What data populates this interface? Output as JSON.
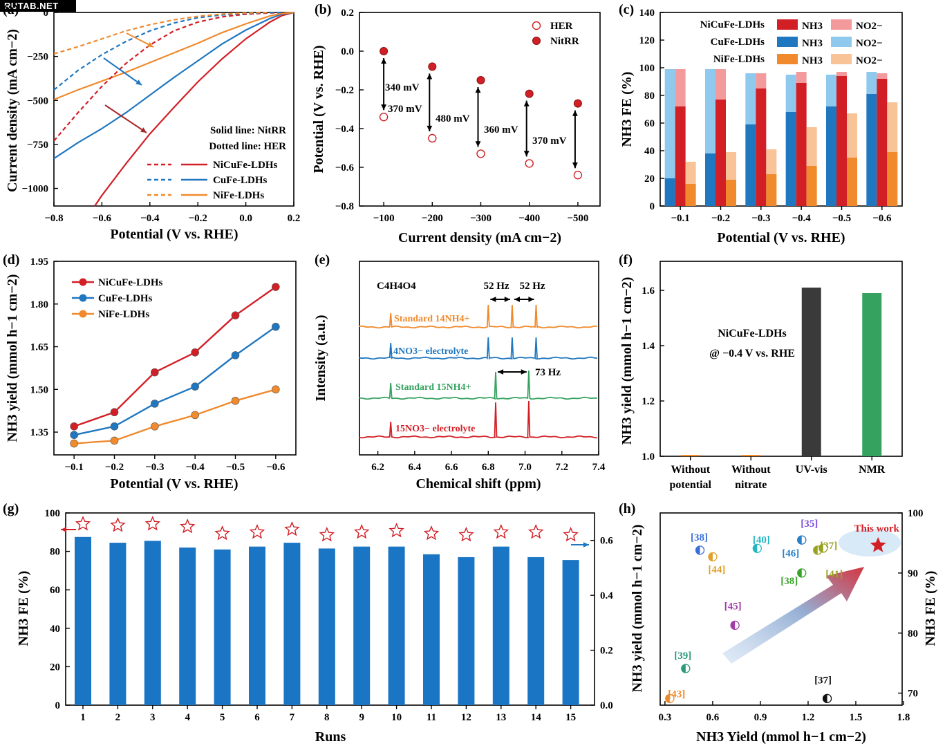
{
  "watermark": "RUTAB.NET",
  "colors": {
    "red": "#d21f26",
    "blue": "#1f77c0",
    "orange": "#f08a2c",
    "light_red": "#f39a9d",
    "light_blue": "#8fc9ee",
    "light_orange": "#f9c398",
    "green": "#35a35f",
    "dark": "#3a3a3a",
    "bar_blue": "#1a75c4",
    "star": "#d21f26"
  },
  "chart_data": [
    {
      "panel": "(a)",
      "type": "line",
      "xlabel": "Potential (V vs. RHE)",
      "ylabel": "Current density (mA cm−2)",
      "xlim": [
        -0.8,
        0.2
      ],
      "ylim": [
        -1100,
        0
      ],
      "xticks": [
        "−0.8",
        "−0.6",
        "−0.4",
        "−0.2",
        "0.0",
        "0.2"
      ],
      "yticks": [
        "0",
        "−250",
        "−500",
        "−750",
        "−1000"
      ],
      "notes": [
        "Solid line: NitRR",
        "Dotted line: HER"
      ],
      "legend": [
        "NiCuFe-LDHs",
        "CuFe-LDHs",
        "NiFe-LDHs"
      ],
      "series": [
        {
          "name": "NiCuFe-LDHs",
          "style": "solid",
          "color": "red",
          "x": [
            -0.63,
            -0.6,
            -0.5,
            -0.4,
            -0.3,
            -0.2,
            -0.1,
            0.0,
            0.1,
            0.15,
            0.2
          ],
          "y": [
            -1100,
            -1040,
            -860,
            -690,
            -540,
            -395,
            -265,
            -150,
            -55,
            -18,
            0
          ]
        },
        {
          "name": "CuFe-LDHs",
          "style": "solid",
          "color": "blue",
          "x": [
            -0.8,
            -0.7,
            -0.6,
            -0.5,
            -0.4,
            -0.3,
            -0.2,
            -0.1,
            0.0,
            0.1,
            0.15,
            0.2
          ],
          "y": [
            -830,
            -740,
            -660,
            -570,
            -470,
            -370,
            -275,
            -180,
            -100,
            -35,
            -10,
            0
          ]
        },
        {
          "name": "NiFe-LDHs",
          "style": "solid",
          "color": "orange",
          "x": [
            -0.8,
            -0.7,
            -0.6,
            -0.5,
            -0.4,
            -0.3,
            -0.2,
            -0.1,
            0.0,
            0.1,
            0.15,
            0.2
          ],
          "y": [
            -495,
            -440,
            -390,
            -340,
            -285,
            -230,
            -175,
            -115,
            -65,
            -20,
            -6,
            0
          ]
        },
        {
          "name": "NiCuFe-LDHs",
          "style": "dashed",
          "color": "red",
          "x": [
            -0.8,
            -0.7,
            -0.6,
            -0.5,
            -0.4,
            -0.3,
            -0.2,
            -0.1,
            0.0,
            0.1,
            0.15
          ],
          "y": [
            -730,
            -570,
            -420,
            -290,
            -185,
            -105,
            -55,
            -25,
            -10,
            -3,
            0
          ]
        },
        {
          "name": "CuFe-LDHs",
          "style": "dashed",
          "color": "blue",
          "x": [
            -0.8,
            -0.7,
            -0.6,
            -0.5,
            -0.4,
            -0.3,
            -0.2,
            -0.1,
            0.0,
            0.1,
            0.15
          ],
          "y": [
            -440,
            -330,
            -240,
            -165,
            -105,
            -60,
            -30,
            -14,
            -5,
            -1,
            0
          ]
        },
        {
          "name": "NiFe-LDHs",
          "style": "dashed",
          "color": "orange",
          "x": [
            -0.8,
            -0.7,
            -0.6,
            -0.5,
            -0.4,
            -0.3,
            -0.2,
            -0.1,
            0.0,
            0.1
          ],
          "y": [
            -235,
            -195,
            -150,
            -105,
            -70,
            -42,
            -22,
            -9,
            -3,
            0
          ]
        }
      ]
    },
    {
      "panel": "(b)",
      "type": "scatter",
      "xlabel": "Current density (mA cm−2)",
      "ylabel": "Potential (V vs. RHE)",
      "xlim": [
        -50,
        -550
      ],
      "ylim": [
        -0.8,
        0.2
      ],
      "xticks": [
        "−100",
        "−200",
        "−300",
        "−400",
        "−500"
      ],
      "yticks": [
        "0.2",
        "0.0",
        "−0.2",
        "−0.4",
        "−0.6",
        "−0.8"
      ],
      "legend": [
        "HER",
        "NitRR"
      ],
      "x": [
        -100,
        -200,
        -300,
        -400,
        -500
      ],
      "series": [
        {
          "name": "HER",
          "values": [
            -0.34,
            -0.45,
            -0.53,
            -0.58,
            -0.64
          ]
        },
        {
          "name": "NitRR",
          "values": [
            0.0,
            -0.08,
            -0.15,
            -0.22,
            -0.27
          ]
        }
      ],
      "annotations": [
        "340 mV",
        "370 mV",
        "480 mV",
        "360 mV",
        "370 mV"
      ]
    },
    {
      "panel": "(c)",
      "type": "bar",
      "xlabel": "Potential (V vs. RHE)",
      "ylabel": "NH3 FE (%)",
      "ylim": [
        0,
        140
      ],
      "yticks": [
        "0",
        "20",
        "40",
        "60",
        "80",
        "100",
        "120",
        "140"
      ],
      "categories": [
        "−0.1",
        "−0.2",
        "−0.3",
        "−0.4",
        "−0.5",
        "−0.6"
      ],
      "legend_rows": [
        "NiCuFe-LDHs",
        "CuFe-LDHs",
        "NiFe-LDHs"
      ],
      "legend_items": [
        "NH3",
        "NO2−"
      ],
      "series": [
        {
          "name": "CuFe-LDHs",
          "nh3": [
            20,
            38,
            59,
            68,
            72,
            81
          ],
          "no2": [
            79,
            61,
            37,
            27,
            23,
            16
          ]
        },
        {
          "name": "NiCuFe-LDHs",
          "nh3": [
            72,
            77,
            85,
            89,
            94,
            92
          ],
          "no2": [
            27,
            22,
            11,
            8,
            3,
            4
          ]
        },
        {
          "name": "NiFe-LDHs",
          "nh3": [
            16,
            19,
            23,
            29,
            35,
            39
          ],
          "no2": [
            16,
            20,
            18,
            28,
            32,
            36
          ]
        }
      ]
    },
    {
      "panel": "(d)",
      "type": "line",
      "xlabel": "Potential (V vs. RHE)",
      "ylabel": "NH3 yield (mmol h−1 cm−2)",
      "ylim": [
        1.27,
        1.95
      ],
      "yticks": [
        "1.35",
        "1.50",
        "1.65",
        "1.80",
        "1.95"
      ],
      "categories": [
        "−0.1",
        "−0.2",
        "−0.3",
        "−0.4",
        "−0.5",
        "−0.6"
      ],
      "legend": [
        "NiCuFe-LDHs",
        "CuFe-LDHs",
        "NiFe-LDHs"
      ],
      "series": [
        {
          "name": "NiCuFe-LDHs",
          "values": [
            1.37,
            1.42,
            1.56,
            1.63,
            1.76,
            1.86
          ]
        },
        {
          "name": "CuFe-LDHs",
          "values": [
            1.34,
            1.37,
            1.45,
            1.51,
            1.62,
            1.72
          ]
        },
        {
          "name": "NiFe-LDHs",
          "values": [
            1.31,
            1.32,
            1.37,
            1.41,
            1.46,
            1.5
          ]
        }
      ]
    },
    {
      "panel": "(e)",
      "type": "line",
      "xlabel": "Chemical shift (ppm)",
      "ylabel": "Intensity (a.u.)",
      "xlim": [
        6.1,
        7.4
      ],
      "xticks": [
        "6.2",
        "6.4",
        "6.6",
        "6.8",
        "7.0",
        "7.2",
        "7.4"
      ],
      "ref_peak": "C4H4O4",
      "series": [
        {
          "name": "Standard 14NH4+",
          "peaks": [
            6.27,
            6.8,
            6.93,
            7.06
          ]
        },
        {
          "name": "14NO3− electrolyte",
          "peaks": [
            6.27,
            6.8,
            6.93,
            7.06
          ]
        },
        {
          "name": "Standard 15NH4+",
          "peaks": [
            6.27,
            6.84,
            7.02
          ]
        },
        {
          "name": "15NO3− electrolyte",
          "peaks": [
            6.27,
            6.84,
            7.02
          ]
        }
      ],
      "annotations": [
        "52 Hz",
        "52 Hz",
        "73 Hz"
      ]
    },
    {
      "panel": "(f)",
      "type": "bar",
      "ylabel": "NH3 yield (mmol h−1 cm−2)",
      "ylim": [
        1.0,
        1.7
      ],
      "yticks": [
        "1.0",
        "1.2",
        "1.4",
        "1.6"
      ],
      "categories": [
        [
          "Without",
          "potential"
        ],
        [
          "Without",
          "nitrate"
        ],
        [
          "UV-vis"
        ],
        [
          "NMR"
        ]
      ],
      "values": [
        1.005,
        1.005,
        1.61,
        1.59
      ],
      "annotation": [
        "NiCuFe-LDHs",
        "@ −0.4 V vs. RHE"
      ]
    },
    {
      "panel": "(g)",
      "type": "bar",
      "xlabel": "Runs",
      "ylabel": "NH3 FE (%)",
      "y2label": "NH3 yield (mmol h−1 cm−2)",
      "ylim": [
        0,
        100
      ],
      "y2lim": [
        0,
        0.7
      ],
      "yticks": [
        "0",
        "20",
        "40",
        "60",
        "80",
        "100"
      ],
      "y2ticks": [
        "0.0",
        "0.2",
        "0.4",
        "0.6"
      ],
      "categories": [
        "1",
        "2",
        "3",
        "4",
        "5",
        "6",
        "7",
        "8",
        "9",
        "10",
        "11",
        "12",
        "13",
        "14",
        "15"
      ],
      "series": [
        {
          "name": "NH3 FE",
          "values": [
            87.5,
            84.5,
            85.5,
            82,
            81,
            82.5,
            84.5,
            81.5,
            82.5,
            82.5,
            78.5,
            77,
            82.5,
            77,
            75.5
          ]
        },
        {
          "name": "NH3 yield",
          "values": [
            0.66,
            0.655,
            0.66,
            0.65,
            0.625,
            0.63,
            0.64,
            0.62,
            0.63,
            0.635,
            0.625,
            0.62,
            0.63,
            0.63,
            0.62
          ]
        }
      ]
    },
    {
      "panel": "(h)",
      "type": "scatter",
      "xlabel": "NH3 Yield (mmol h−1 cm−2)",
      "ylabel": "NH3 FE (%)",
      "xlim": [
        0.27,
        1.8
      ],
      "ylim": [
        68,
        100
      ],
      "xticks": [
        "0.3",
        "0.6",
        "0.9",
        "1.2",
        "1.5",
        "1.8"
      ],
      "yticks": [
        "70",
        "80",
        "90",
        "100"
      ],
      "points": [
        {
          "label": "[38]",
          "x": 0.52,
          "y": 93.8,
          "color": "#3a6fd8"
        },
        {
          "label": "[44]",
          "x": 0.6,
          "y": 92.7,
          "color": "#e0a02e"
        },
        {
          "label": "[40]",
          "x": 0.88,
          "y": 94.1,
          "color": "#22b7c0"
        },
        {
          "label": "[35]",
          "x": 1.16,
          "y": 95.5,
          "color": "#7b4fd8"
        },
        {
          "label": "[46]",
          "x": 1.16,
          "y": 95.5,
          "color": "#2a80c8"
        },
        {
          "label": "[37]",
          "x": 1.26,
          "y": 93.8,
          "color": "#98a21f"
        },
        {
          "label": "[41]",
          "x": 1.26,
          "y": 93.8,
          "color": "#98a21f"
        },
        {
          "label": "[38]",
          "x": 1.16,
          "y": 90.0,
          "color": "#3aa22a"
        },
        {
          "label": "[45]",
          "x": 0.74,
          "y": 81.3,
          "color": "#a23aa8"
        },
        {
          "label": "[39]",
          "x": 0.43,
          "y": 74.1,
          "color": "#2a9a7a"
        },
        {
          "label": "[43]",
          "x": 0.33,
          "y": 69.1,
          "color": "#ef8a2a"
        },
        {
          "label": "[37]",
          "x": 1.32,
          "y": 69.1,
          "color": "#111111"
        },
        {
          "label": "This work",
          "x": 1.64,
          "y": 94.6,
          "color": "#d21f26"
        }
      ]
    }
  ]
}
